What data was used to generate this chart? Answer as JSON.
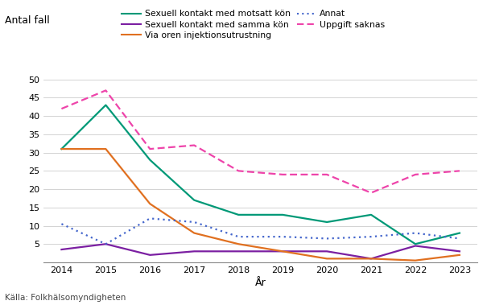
{
  "years": [
    2014,
    2015,
    2016,
    2017,
    2018,
    2019,
    2020,
    2021,
    2022,
    2023
  ],
  "series": {
    "Sexuell kontakt med motsatt kön": [
      31,
      43,
      28,
      17,
      13,
      13,
      11,
      13,
      5,
      8
    ],
    "Sexuell kontakt med samma kön": [
      3.5,
      5,
      2,
      3,
      3,
      3,
      3,
      1,
      4.5,
      3
    ],
    "Via oren injektionsutrustning": [
      31,
      31,
      16,
      8,
      5,
      3,
      1,
      1,
      0.5,
      2
    ],
    "Annat": [
      10.5,
      5,
      12,
      11,
      7,
      7,
      6.5,
      7,
      8,
      6.5
    ],
    "Uppgift saknas": [
      42,
      47,
      31,
      32,
      25,
      24,
      24,
      19,
      24,
      25
    ]
  },
  "colors": {
    "Sexuell kontakt med motsatt kön": "#009977",
    "Sexuell kontakt med samma kön": "#7B1FA2",
    "Via oren injektionsutrustning": "#E07020",
    "Annat": "#4466CC",
    "Uppgift saknas": "#EE44AA"
  },
  "linestyles": {
    "Sexuell kontakt med motsatt kön": "solid",
    "Sexuell kontakt med samma kön": "solid",
    "Via oren injektionsutrustning": "solid",
    "Annat": "dotted",
    "Uppgift saknas": "dashed"
  },
  "title_y_label": "Antal fall",
  "xlabel": "År",
  "source": "Källa: Folkhälsomyndigheten",
  "ylim": [
    0,
    50
  ],
  "yticks": [
    0,
    5,
    10,
    15,
    20,
    25,
    30,
    35,
    40,
    45,
    50
  ],
  "background_color": "#FFFFFF",
  "legend_row1": [
    "Sexuell kontakt med motsatt kön",
    "Sexuell kontakt med samma kön"
  ],
  "legend_row2": [
    "Via oren injektionsutrustning",
    "Annat"
  ],
  "legend_row3": [
    "Uppgift saknas"
  ]
}
